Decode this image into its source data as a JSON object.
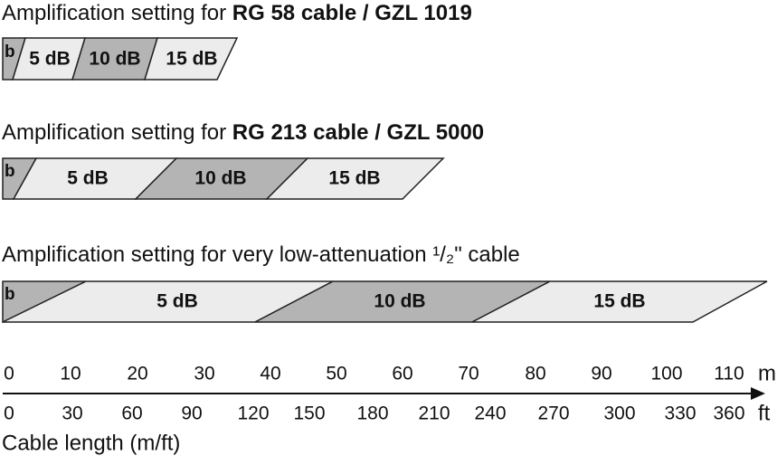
{
  "sections": [
    {
      "title_prefix": "Amplification setting for ",
      "title_bold": "RG 58 cable / GZL 1019",
      "segments": [
        "b",
        "5 dB",
        "10 dB",
        "15 dB"
      ]
    },
    {
      "title_prefix": "Amplification setting for ",
      "title_bold": "RG 213 cable / GZL 5000",
      "segments": [
        "b",
        "5 dB",
        "10 dB",
        "15 dB"
      ]
    },
    {
      "title_prefix": "Amplification setting for very low-attenuation ¹/₂\" cable",
      "segments": [
        "b",
        "5 dB",
        "10 dB",
        "15 dB"
      ]
    }
  ],
  "axis": {
    "meters": [
      "0",
      "10",
      "20",
      "30",
      "40",
      "50",
      "60",
      "70",
      "80",
      "90",
      "100",
      "110"
    ],
    "meters_unit": "m",
    "feet": [
      "0",
      "30",
      "60",
      "90",
      "120",
      "150",
      "180",
      "210",
      "240",
      "270",
      "300",
      "330",
      "360"
    ],
    "feet_unit": "ft",
    "label": "Cable length (m/ft)"
  }
}
